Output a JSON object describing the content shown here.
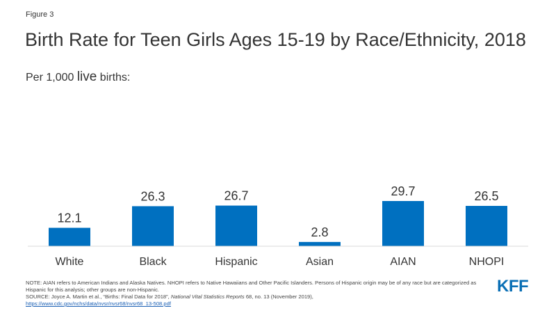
{
  "figure_label": "Figure 3",
  "title": "Birth Rate for Teen Girls Ages 15-19 by Race/Ethnicity, 2018",
  "subtitle_prefix": "Per 1,000 ",
  "subtitle_live": "live",
  "subtitle_suffix": " births:",
  "chart_data": {
    "type": "bar",
    "categories": [
      "White",
      "Black",
      "Hispanic",
      "Asian",
      "AIAN",
      "NHOPI"
    ],
    "values": [
      12.1,
      26.3,
      26.7,
      2.8,
      29.7,
      26.5
    ],
    "data_labels": [
      "12.1",
      "26.3",
      "26.7",
      "2.8",
      "29.7",
      "26.5"
    ],
    "ylim": [
      0,
      29.7
    ],
    "bar_color": "#0070C0",
    "grid": false,
    "legend": "none"
  },
  "footer": {
    "note": "NOTE: AIAN refers to American Indians and Alaska Natives. NHOPI refers to Native Hawaiians and Other Pacific Islanders. Persons of Hispanic origin may be of any race but are categorized as Hispanic for this analysis; other groups are non-Hispanic.",
    "source_prefix": "SOURCE: Joyce A. Martin et al., “Births: Final Data for 2018”, ",
    "source_journal": "National Vital Statistics Reports",
    "source_suffix": " 68, no. 13 (November 2019),",
    "source_link": "https://www.cdc.gov/nchs/data/nvsr/nvsr68/nvsr68_13-508.pdf"
  },
  "logo_text": "KFF"
}
